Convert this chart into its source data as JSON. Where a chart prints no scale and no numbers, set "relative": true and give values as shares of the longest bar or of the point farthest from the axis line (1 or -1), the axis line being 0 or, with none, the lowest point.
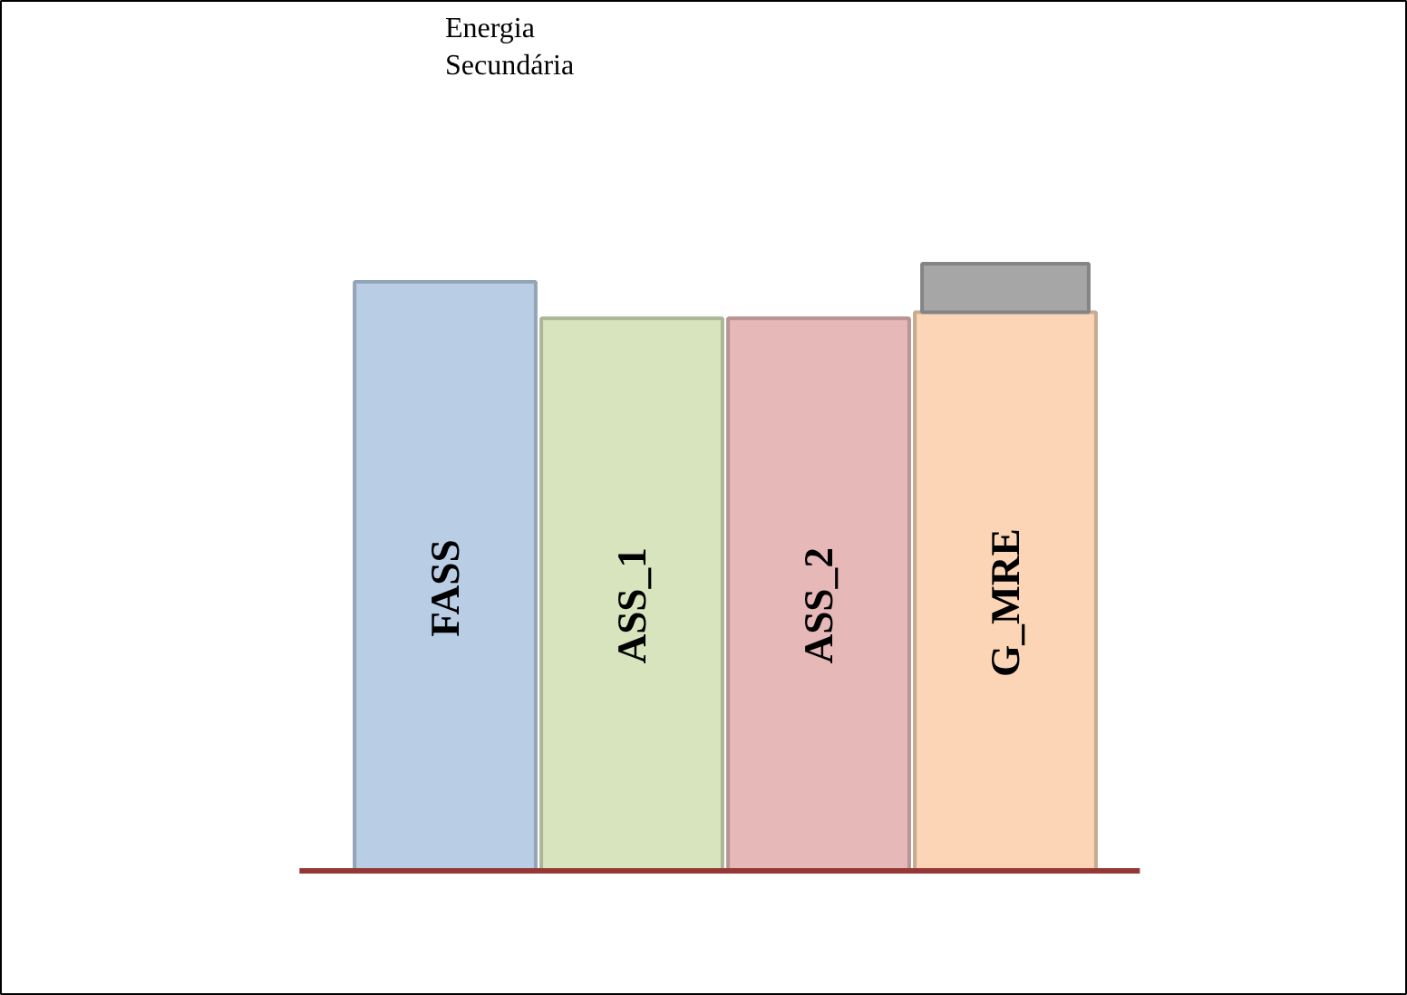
{
  "chart_data": {
    "type": "bar",
    "stacked": true,
    "relative": true,
    "categories": [
      "FASS",
      "ASS_1",
      "ASS_2",
      "G_MRE"
    ],
    "series": [
      {
        "colors": [
          "#b9cde5",
          "#d7e4bd",
          "#e6b9b8",
          "#fbd5b5"
        ],
        "values": [
          0.97,
          0.91,
          0.91,
          0.92
        ]
      },
      {
        "color": "#a6a6a6",
        "values": [
          null,
          null,
          null,
          0.08
        ]
      }
    ],
    "annotations": [
      "Energia\nSecundária"
    ]
  }
}
